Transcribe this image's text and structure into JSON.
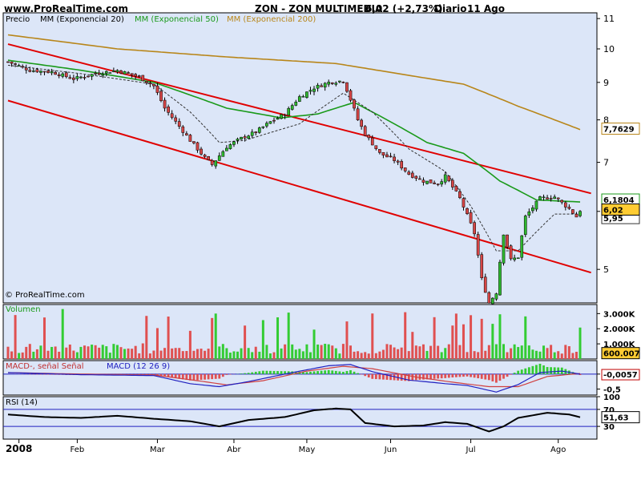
{
  "header": {
    "site": "www.ProRealTime.com",
    "symbol": "ZON - ZON MULTIMEDIA",
    "quote": "6,02 (+2,73%)",
    "period": "Diario",
    "date": "11 Ago"
  },
  "watermark": "© ProRealTime.com",
  "colors": {
    "panel_bg": "#dce6f8",
    "up": "#2eb82e",
    "down": "#d64545",
    "ema20": "#333333",
    "ema50": "#1a9a1a",
    "ema200": "#b8861a",
    "channel": "#e00000",
    "vol_up": "#33cc33",
    "vol_down": "#e05050"
  },
  "chart_data": [
    {
      "type": "candlestick",
      "panel": "price",
      "legend": [
        "Precio",
        "MM (Exponencial 20)",
        "MM (Exponencial 50)",
        "MM (Exponencial 200)"
      ],
      "y_ticks": [
        "11",
        "10",
        "9",
        "8",
        "7",
        "6",
        "5"
      ],
      "y_tick_values": [
        11,
        10,
        9,
        8,
        7,
        6,
        5
      ],
      "ylim": [
        4.5,
        11.2
      ],
      "log_scale": true,
      "x_ticks": [
        "2008",
        "Feb",
        "Mar",
        "Abr",
        "May",
        "Jun",
        "Jul",
        "Ago"
      ],
      "x_tick_index": [
        3,
        19,
        41,
        62,
        82,
        105,
        127,
        151
      ],
      "total_sessions": 158,
      "labels": {
        "ema200": "7,7629",
        "ema50": "6,1804",
        "last": "6,02",
        "ema20": "5,95"
      },
      "label_values": {
        "ema200": 7.7629,
        "ema50": 6.1804,
        "last": 6.02,
        "ema20": 5.95
      },
      "price_keypoints": [
        [
          0,
          9.6
        ],
        [
          6,
          9.35
        ],
        [
          12,
          9.3
        ],
        [
          18,
          9.1
        ],
        [
          24,
          9.25
        ],
        [
          30,
          9.35
        ],
        [
          36,
          9.15
        ],
        [
          40,
          8.9
        ],
        [
          43,
          8.3
        ],
        [
          46,
          7.95
        ],
        [
          50,
          7.5
        ],
        [
          54,
          7.1
        ],
        [
          56,
          6.95
        ],
        [
          60,
          7.35
        ],
        [
          64,
          7.55
        ],
        [
          68,
          7.7
        ],
        [
          72,
          7.95
        ],
        [
          76,
          8.15
        ],
        [
          80,
          8.6
        ],
        [
          84,
          8.85
        ],
        [
          88,
          9.0
        ],
        [
          92,
          9.05
        ],
        [
          96,
          8.0
        ],
        [
          98,
          7.65
        ],
        [
          102,
          7.2
        ],
        [
          106,
          7.05
        ],
        [
          110,
          6.75
        ],
        [
          114,
          6.6
        ],
        [
          118,
          6.55
        ],
        [
          120,
          6.7
        ],
        [
          124,
          6.25
        ],
        [
          128,
          5.6
        ],
        [
          130,
          4.85
        ],
        [
          132,
          4.5
        ],
        [
          134,
          4.65
        ],
        [
          136,
          5.6
        ],
        [
          138,
          5.15
        ],
        [
          140,
          5.2
        ],
        [
          142,
          5.9
        ],
        [
          146,
          6.25
        ],
        [
          150,
          6.28
        ],
        [
          154,
          6.05
        ],
        [
          156,
          5.9
        ],
        [
          157,
          6.02
        ]
      ],
      "ema200_keypoints": [
        [
          0,
          10.45
        ],
        [
          30,
          10.0
        ],
        [
          60,
          9.75
        ],
        [
          90,
          9.55
        ],
        [
          110,
          9.2
        ],
        [
          125,
          8.95
        ],
        [
          140,
          8.35
        ],
        [
          150,
          8.0
        ],
        [
          157,
          7.76
        ]
      ],
      "ema50_keypoints": [
        [
          0,
          9.65
        ],
        [
          20,
          9.35
        ],
        [
          40,
          9.0
        ],
        [
          60,
          8.3
        ],
        [
          75,
          8.05
        ],
        [
          85,
          8.15
        ],
        [
          95,
          8.45
        ],
        [
          105,
          7.95
        ],
        [
          115,
          7.45
        ],
        [
          125,
          7.2
        ],
        [
          135,
          6.6
        ],
        [
          145,
          6.22
        ],
        [
          157,
          6.18
        ]
      ],
      "ema20_keypoints": [
        [
          0,
          9.5
        ],
        [
          20,
          9.25
        ],
        [
          40,
          8.95
        ],
        [
          50,
          8.2
        ],
        [
          58,
          7.45
        ],
        [
          65,
          7.5
        ],
        [
          80,
          7.9
        ],
        [
          92,
          8.7
        ],
        [
          100,
          8.2
        ],
        [
          110,
          7.3
        ],
        [
          120,
          6.8
        ],
        [
          127,
          6.1
        ],
        [
          134,
          5.3
        ],
        [
          140,
          5.3
        ],
        [
          150,
          5.95
        ],
        [
          157,
          5.95
        ]
      ],
      "channel_upper": [
        [
          0,
          10.15
        ],
        [
          160,
          6.35
        ]
      ],
      "channel_lower": [
        [
          0,
          8.5
        ],
        [
          160,
          4.95
        ]
      ]
    },
    {
      "type": "bar",
      "panel": "volume",
      "legend": [
        "Volumen"
      ],
      "y_ticks": [
        "3.000K",
        "2.000K",
        "1.000K"
      ],
      "y_tick_values": [
        3000,
        2000,
        1000
      ],
      "ylim": [
        0,
        3600
      ],
      "last_value_label": "600.007",
      "last_value": 600
    },
    {
      "type": "line",
      "panel": "macd",
      "legend": [
        "MACD-, señal Señal",
        "MACD (12 26 9)"
      ],
      "y_ticks": [
        "0",
        "-0,5"
      ],
      "y_tick_values": [
        0,
        -0.5
      ],
      "ylim": [
        -0.7,
        0.45
      ],
      "last_value_label": "-0,0057",
      "last_value": -0.0057,
      "macd_keypoints": [
        [
          0,
          0.05
        ],
        [
          20,
          -0.02
        ],
        [
          40,
          -0.05
        ],
        [
          50,
          -0.32
        ],
        [
          58,
          -0.42
        ],
        [
          66,
          -0.25
        ],
        [
          78,
          0.05
        ],
        [
          88,
          0.28
        ],
        [
          94,
          0.32
        ],
        [
          100,
          0.08
        ],
        [
          110,
          -0.2
        ],
        [
          120,
          -0.32
        ],
        [
          126,
          -0.38
        ],
        [
          134,
          -0.6
        ],
        [
          140,
          -0.35
        ],
        [
          146,
          0.05
        ],
        [
          152,
          0.1
        ],
        [
          157,
          0.0
        ]
      ],
      "signal_keypoints": [
        [
          0,
          0.05
        ],
        [
          20,
          0.0
        ],
        [
          40,
          -0.03
        ],
        [
          52,
          -0.22
        ],
        [
          60,
          -0.36
        ],
        [
          70,
          -0.22
        ],
        [
          82,
          0.1
        ],
        [
          92,
          0.26
        ],
        [
          100,
          0.18
        ],
        [
          112,
          -0.1
        ],
        [
          122,
          -0.27
        ],
        [
          132,
          -0.42
        ],
        [
          140,
          -0.42
        ],
        [
          148,
          -0.08
        ],
        [
          157,
          0.02
        ]
      ]
    },
    {
      "type": "line",
      "panel": "rsi",
      "legend": [
        "RSI (14)"
      ],
      "y_ticks": [
        "100",
        "70",
        "30"
      ],
      "y_tick_values": [
        100,
        70,
        30
      ],
      "ylim": [
        0,
        100
      ],
      "last_value_label": "51,63",
      "last_value": 51.63,
      "rsi_keypoints": [
        [
          0,
          58
        ],
        [
          10,
          52
        ],
        [
          20,
          50
        ],
        [
          30,
          55
        ],
        [
          40,
          48
        ],
        [
          50,
          42
        ],
        [
          58,
          30
        ],
        [
          66,
          45
        ],
        [
          76,
          52
        ],
        [
          84,
          68
        ],
        [
          90,
          72
        ],
        [
          94,
          70
        ],
        [
          98,
          38
        ],
        [
          106,
          30
        ],
        [
          114,
          32
        ],
        [
          120,
          40
        ],
        [
          126,
          36
        ],
        [
          132,
          18
        ],
        [
          136,
          30
        ],
        [
          140,
          50
        ],
        [
          148,
          62
        ],
        [
          154,
          58
        ],
        [
          157,
          51.6
        ]
      ]
    }
  ]
}
